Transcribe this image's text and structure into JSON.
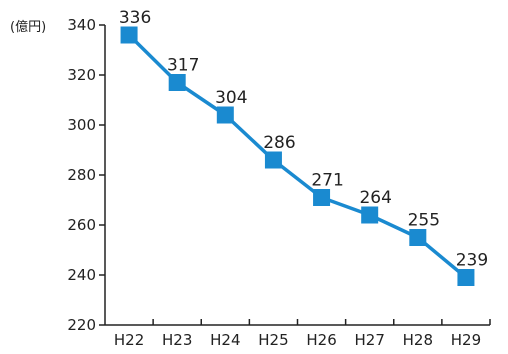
{
  "chart_data": {
    "type": "line",
    "title": "",
    "xlabel": "",
    "ylabel": "",
    "y_unit": "(億円)",
    "categories": [
      "H22",
      "H23",
      "H24",
      "H25",
      "H26",
      "H27",
      "H28",
      "H29"
    ],
    "series": [
      {
        "values": [
          336,
          317,
          304,
          286,
          271,
          264,
          255,
          239
        ]
      }
    ],
    "ylim": [
      220,
      340
    ],
    "yticks": [
      "220",
      "240",
      "260",
      "280",
      "300",
      "320",
      "340"
    ],
    "data_labels": [
      "336",
      "317",
      "304",
      "286",
      "271",
      "264",
      "255",
      "239"
    ],
    "grid": false,
    "legend": "none",
    "colors": {
      "line": "#1a8ad0",
      "marker": "#1a8ad0",
      "axis": "#222222"
    }
  }
}
